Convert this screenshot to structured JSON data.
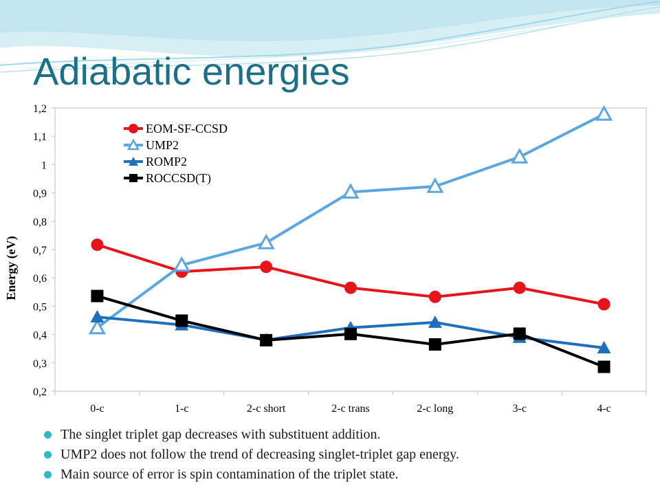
{
  "slide": {
    "title": "Adiabatic energies",
    "bullets": [
      "The singlet triplet gap decreases with substituent addition.",
      "UMP2 does not follow the trend of decreasing singlet-triplet gap energy.",
      "Main source of error is spin contamination of the triplet state."
    ],
    "colors": {
      "title": "#1c6f88",
      "bullet": "#30b8c8",
      "swoosh": "#9fd8e6"
    }
  },
  "chart_data": {
    "type": "line",
    "title": "",
    "xlabel": "",
    "ylabel": "Energy (eV)",
    "categories": [
      "0-c",
      "1-c",
      "2-c short",
      "2-c trans",
      "2-c long",
      "3-c",
      "4-c"
    ],
    "ylim": [
      0.2,
      1.2
    ],
    "yticks": [
      "0,2",
      "0,3",
      "0,4",
      "0,5",
      "0,6",
      "0,7",
      "0,8",
      "0,9",
      "1",
      "1,1",
      "1,2"
    ],
    "grid": false,
    "legend_position": "top-left",
    "series": [
      {
        "name": "EOM-SF-CCSD",
        "color": "#e8141c",
        "marker": "circle",
        "values": [
          0.717,
          0.622,
          0.639,
          0.565,
          0.533,
          0.565,
          0.507
        ]
      },
      {
        "name": "UMP2",
        "color": "#5ba6e0",
        "marker": "triangle-open",
        "values": [
          0.424,
          0.645,
          0.724,
          0.903,
          0.923,
          1.027,
          1.178
        ]
      },
      {
        "name": "ROMP2",
        "color": "#1f6fbd",
        "marker": "triangle",
        "values": [
          0.462,
          0.434,
          0.381,
          0.424,
          0.443,
          0.39,
          0.353
        ]
      },
      {
        "name": "ROCCSD(T)",
        "color": "#000000",
        "marker": "square",
        "values": [
          0.536,
          0.449,
          0.38,
          0.402,
          0.365,
          0.403,
          0.286
        ]
      }
    ]
  }
}
